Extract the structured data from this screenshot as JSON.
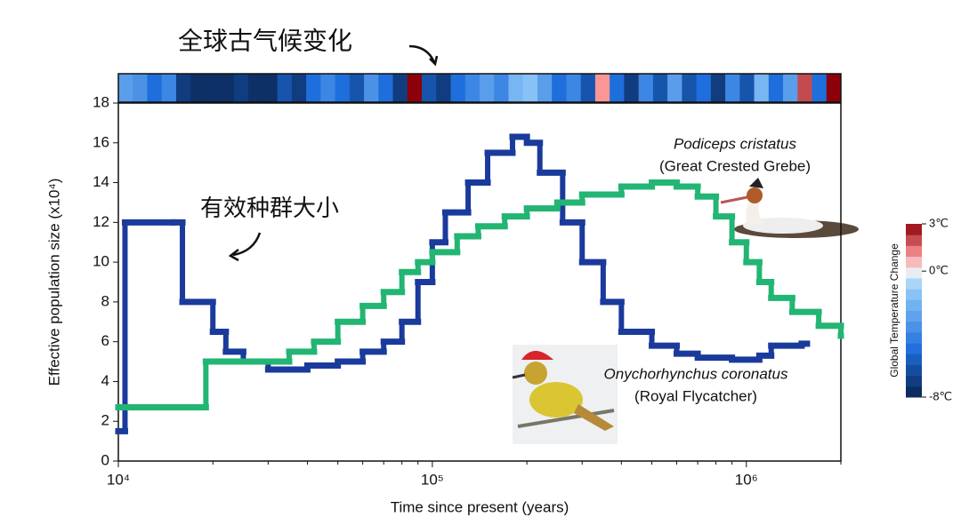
{
  "chart_data": {
    "type": "step",
    "title": "全球古气候变化",
    "annotation": "有效种群大小",
    "xlabel": "Time since present (years)",
    "ylabel": "Effective population size (x10⁴)",
    "xscale": "log",
    "xlim": [
      10000,
      2000000
    ],
    "xticks": [
      {
        "value": 10000,
        "label": "10⁴"
      },
      {
        "value": 100000,
        "label": "10⁵"
      },
      {
        "value": 1000000,
        "label": "10⁶"
      }
    ],
    "ylim": [
      0,
      18
    ],
    "yticks": [
      0,
      2,
      4,
      6,
      8,
      10,
      12,
      14,
      16,
      18
    ],
    "series": [
      {
        "name": "Onychorhynchus coronatus",
        "common_name": "(Royal Flycatcher)",
        "color": "#1a3a9c",
        "x": [
          10000,
          10500,
          15000,
          16000,
          20000,
          22000,
          25000,
          30000,
          40000,
          50000,
          60000,
          70000,
          80000,
          90000,
          100000,
          110000,
          130000,
          150000,
          180000,
          200000,
          220000,
          260000,
          300000,
          350000,
          400000,
          500000,
          600000,
          700000,
          900000,
          1100000,
          1200000,
          1500000
        ],
        "values": [
          1.5,
          12,
          12,
          8,
          6.5,
          5.5,
          5,
          4.6,
          4.8,
          5,
          5.5,
          6,
          7,
          9,
          11,
          12.5,
          14,
          15.5,
          16.3,
          16,
          14.5,
          12,
          10,
          8,
          6.5,
          5.8,
          5.4,
          5.2,
          5.1,
          5.3,
          5.8,
          5.9
        ]
      },
      {
        "name": "Podiceps cristatus",
        "common_name": "(Great Crested Grebe)",
        "color": "#22b573",
        "x": [
          10000,
          19000,
          35000,
          42000,
          50000,
          60000,
          70000,
          80000,
          90000,
          100000,
          120000,
          140000,
          170000,
          200000,
          250000,
          300000,
          400000,
          500000,
          600000,
          700000,
          800000,
          900000,
          1000000,
          1100000,
          1200000,
          1400000,
          1700000,
          2000000
        ],
        "values": [
          2.7,
          5,
          5.5,
          6,
          7,
          7.8,
          8.5,
          9.5,
          10,
          10.5,
          11.3,
          11.8,
          12.3,
          12.7,
          13,
          13.4,
          13.8,
          14,
          13.8,
          13.3,
          12.3,
          11,
          10,
          9,
          8.2,
          7.5,
          6.8,
          6.3
        ]
      }
    ],
    "temperature_strip": {
      "values": [
        -3,
        -3.5,
        -5,
        -4,
        -7,
        -7.5,
        -7.5,
        -7.5,
        -7,
        -7.5,
        -7.5,
        -6,
        -7,
        -5,
        -4,
        -5,
        -6,
        -3.5,
        -5,
        -7,
        3,
        -6,
        -7,
        -5,
        -4,
        -3,
        -4,
        -2,
        -1.5,
        -3,
        -5,
        -4,
        -6,
        1,
        -5,
        -7,
        -4,
        -6,
        -3,
        -6,
        -5,
        -7,
        -4,
        -6,
        -2,
        -5,
        -3,
        2,
        -5,
        3
      ]
    },
    "colorbar": {
      "title": "Global Temperature Change",
      "clim": [
        -8,
        3
      ],
      "ticks": [
        {
          "value": 3,
          "label": "3℃"
        },
        {
          "value": 0,
          "label": "0℃"
        },
        {
          "value": -8,
          "label": "-8℃"
        }
      ]
    }
  }
}
